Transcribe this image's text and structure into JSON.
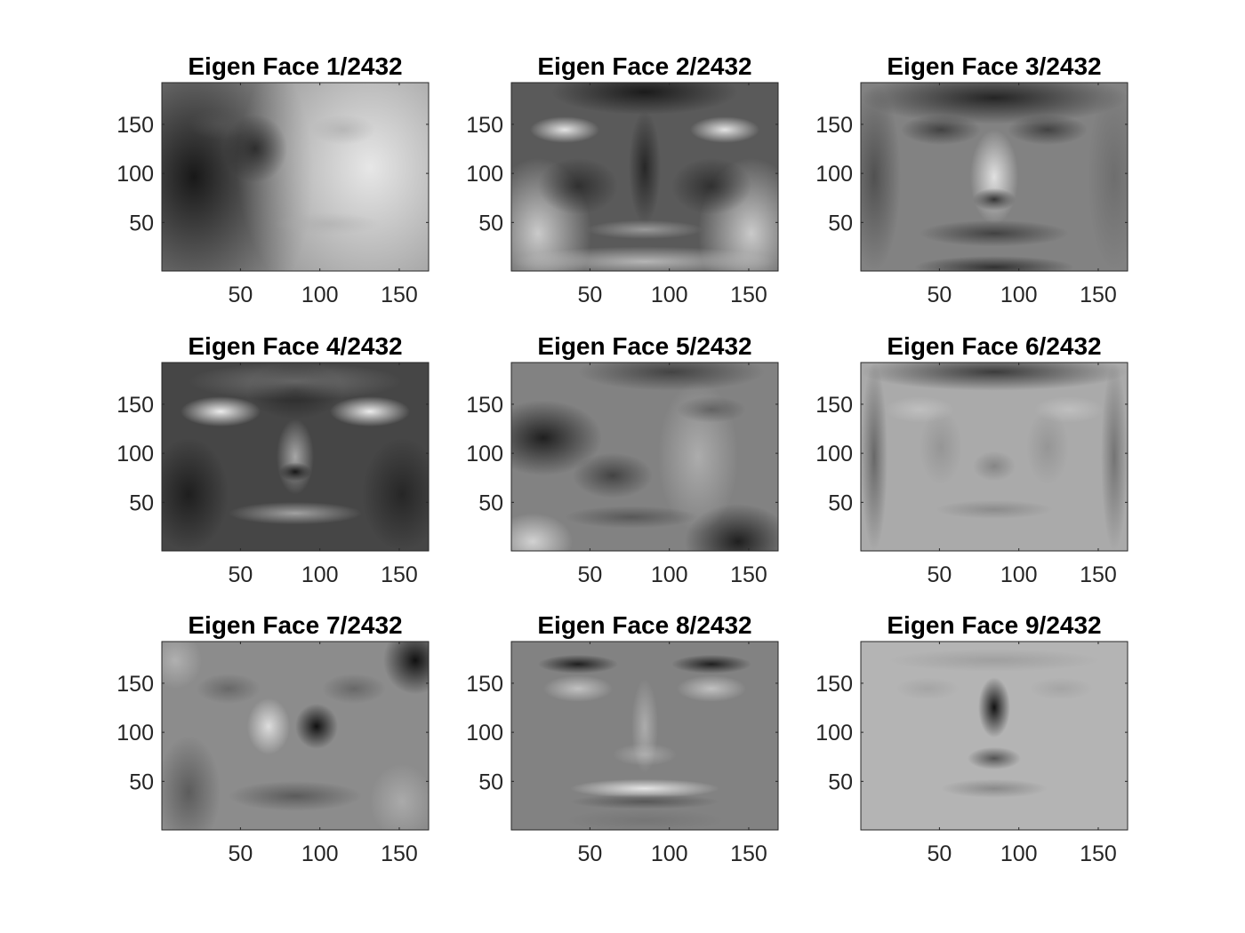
{
  "figure": {
    "kind": "grid of grayscale eigenface images",
    "rows": 3,
    "cols": 3
  },
  "chart_data": [
    {
      "type": "heatmap",
      "title": "Eigen Face 1/2432",
      "xlim": [
        0.5,
        168.5
      ],
      "ylim": [
        0.5,
        192.5
      ],
      "xticks": [
        50,
        100,
        150
      ],
      "yticks": [
        50,
        100,
        150
      ],
      "grid": false,
      "colormap": "gray"
    },
    {
      "type": "heatmap",
      "title": "Eigen Face 2/2432",
      "xlim": [
        0.5,
        168.5
      ],
      "ylim": [
        0.5,
        192.5
      ],
      "xticks": [
        50,
        100,
        150
      ],
      "yticks": [
        50,
        100,
        150
      ],
      "grid": false,
      "colormap": "gray"
    },
    {
      "type": "heatmap",
      "title": "Eigen Face 3/2432",
      "xlim": [
        0.5,
        168.5
      ],
      "ylim": [
        0.5,
        192.5
      ],
      "xticks": [
        50,
        100,
        150
      ],
      "yticks": [
        50,
        100,
        150
      ],
      "grid": false,
      "colormap": "gray"
    },
    {
      "type": "heatmap",
      "title": "Eigen Face 4/2432",
      "xlim": [
        0.5,
        168.5
      ],
      "ylim": [
        0.5,
        192.5
      ],
      "xticks": [
        50,
        100,
        150
      ],
      "yticks": [
        50,
        100,
        150
      ],
      "grid": false,
      "colormap": "gray"
    },
    {
      "type": "heatmap",
      "title": "Eigen Face 5/2432",
      "xlim": [
        0.5,
        168.5
      ],
      "ylim": [
        0.5,
        192.5
      ],
      "xticks": [
        50,
        100,
        150
      ],
      "yticks": [
        50,
        100,
        150
      ],
      "grid": false,
      "colormap": "gray"
    },
    {
      "type": "heatmap",
      "title": "Eigen Face 6/2432",
      "xlim": [
        0.5,
        168.5
      ],
      "ylim": [
        0.5,
        192.5
      ],
      "xticks": [
        50,
        100,
        150
      ],
      "yticks": [
        50,
        100,
        150
      ],
      "grid": false,
      "colormap": "gray"
    },
    {
      "type": "heatmap",
      "title": "Eigen Face 7/2432",
      "xlim": [
        0.5,
        168.5
      ],
      "ylim": [
        0.5,
        192.5
      ],
      "xticks": [
        50,
        100,
        150
      ],
      "yticks": [
        50,
        100,
        150
      ],
      "grid": false,
      "colormap": "gray"
    },
    {
      "type": "heatmap",
      "title": "Eigen Face 8/2432",
      "xlim": [
        0.5,
        168.5
      ],
      "ylim": [
        0.5,
        192.5
      ],
      "xticks": [
        50,
        100,
        150
      ],
      "yticks": [
        50,
        100,
        150
      ],
      "grid": false,
      "colormap": "gray"
    },
    {
      "type": "heatmap",
      "title": "Eigen Face 9/2432",
      "xlim": [
        0.5,
        168.5
      ],
      "ylim": [
        0.5,
        192.5
      ],
      "xticks": [
        50,
        100,
        150
      ],
      "yticks": [
        50,
        100,
        150
      ],
      "grid": false,
      "colormap": "gray"
    }
  ]
}
